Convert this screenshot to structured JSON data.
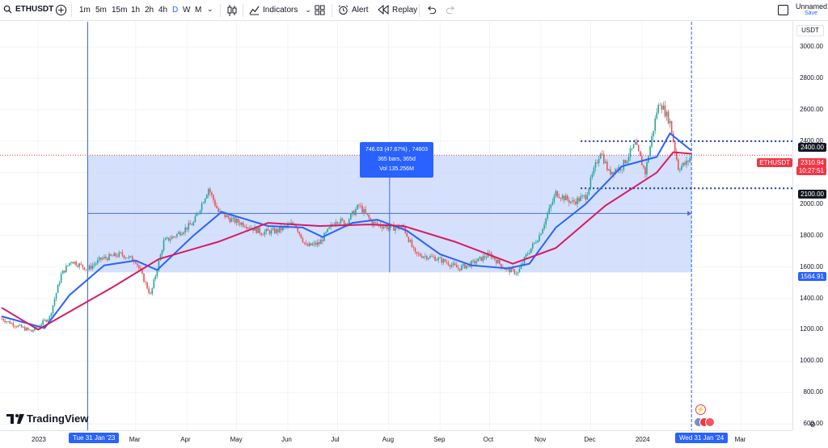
{
  "toolbar": {
    "symbol": "ETHUSDT",
    "timeframes": [
      "1m",
      "5m",
      "15m",
      "1h",
      "2h",
      "4h",
      "D",
      "W",
      "M"
    ],
    "active_timeframe": "D",
    "indicators_label": "Indicators",
    "alert_label": "Alert",
    "replay_label": "Replay",
    "layout_name": "Unnamed",
    "save_label": "Save"
  },
  "price_axis": {
    "currency": "USDT",
    "ticks": [
      "3000.00",
      "2800.00",
      "2600.00",
      "2400.00",
      "2200.00",
      "2000.00",
      "1800.00",
      "1600.00",
      "1400.00",
      "1200.00",
      "1000.00",
      "800.00",
      "600.00"
    ],
    "last_symbol": "ETHUSDT",
    "last_price": "2310.94",
    "countdown": "10:27:51",
    "level_upper": "2400.00",
    "level_lower": "2100.00",
    "range_low": "1564.91"
  },
  "time_axis": {
    "labels": [
      "2023",
      "Mar",
      "Apr",
      "May",
      "Jun",
      "Jul",
      "Aug",
      "Sep",
      "Oct",
      "Nov",
      "Dec",
      "2024",
      "Mar"
    ],
    "start_marker": "Tue 31 Jan '23",
    "end_marker": "Wed 31 Jan '24"
  },
  "measure": {
    "line1": "746.03 (47.67%) , 74603",
    "line2": "365 bars, 365d",
    "line3": "Vol 135.256M"
  },
  "watermark": "TradingView",
  "colors": {
    "accent": "#2962ff",
    "fast_ma": "#2962ff",
    "slow_ma": "#d81b60",
    "up_candle": "#26a69a",
    "down_candle": "#ef5350",
    "range_fill": "#c5d6fb",
    "last_price_tag": "#f23645"
  },
  "chart_data": {
    "type": "candlestick",
    "symbol": "ETHUSDT",
    "interval": "D",
    "y_range": [
      560,
      3160
    ],
    "x_range": [
      "2022-12-09",
      "2024-04-01"
    ],
    "measured_range": {
      "from": "2023-01-31",
      "to": "2024-01-31",
      "low": 1564.91,
      "high": 2310.94,
      "change": 746.03,
      "change_pct": 47.67,
      "bars": 365,
      "volume": "135.256M"
    },
    "price_path": [
      {
        "date": "2022-12-10",
        "close": 1270
      },
      {
        "date": "2022-12-18",
        "close": 1230
      },
      {
        "date": "2022-12-28",
        "close": 1190
      },
      {
        "date": "2023-01-08",
        "close": 1280
      },
      {
        "date": "2023-01-15",
        "close": 1550
      },
      {
        "date": "2023-01-21",
        "close": 1640
      },
      {
        "date": "2023-01-31",
        "close": 1585
      },
      {
        "date": "2023-02-08",
        "close": 1650
      },
      {
        "date": "2023-02-20",
        "close": 1680
      },
      {
        "date": "2023-03-01",
        "close": 1640
      },
      {
        "date": "2023-03-10",
        "close": 1420
      },
      {
        "date": "2023-03-18",
        "close": 1760
      },
      {
        "date": "2023-03-25",
        "close": 1800
      },
      {
        "date": "2023-04-05",
        "close": 1880
      },
      {
        "date": "2023-04-14",
        "close": 2100
      },
      {
        "date": "2023-04-20",
        "close": 1950
      },
      {
        "date": "2023-04-28",
        "close": 1900
      },
      {
        "date": "2023-05-06",
        "close": 1870
      },
      {
        "date": "2023-05-16",
        "close": 1820
      },
      {
        "date": "2023-05-26",
        "close": 1830
      },
      {
        "date": "2023-06-05",
        "close": 1880
      },
      {
        "date": "2023-06-12",
        "close": 1730
      },
      {
        "date": "2023-06-20",
        "close": 1750
      },
      {
        "date": "2023-06-30",
        "close": 1900
      },
      {
        "date": "2023-07-06",
        "close": 1880
      },
      {
        "date": "2023-07-14",
        "close": 1990
      },
      {
        "date": "2023-07-22",
        "close": 1880
      },
      {
        "date": "2023-08-01",
        "close": 1850
      },
      {
        "date": "2023-08-10",
        "close": 1850
      },
      {
        "date": "2023-08-17",
        "close": 1680
      },
      {
        "date": "2023-08-28",
        "close": 1660
      },
      {
        "date": "2023-09-05",
        "close": 1630
      },
      {
        "date": "2023-09-12",
        "close": 1590
      },
      {
        "date": "2023-09-20",
        "close": 1620
      },
      {
        "date": "2023-10-01",
        "close": 1680
      },
      {
        "date": "2023-10-10",
        "close": 1590
      },
      {
        "date": "2023-10-18",
        "close": 1560
      },
      {
        "date": "2023-10-23",
        "close": 1670
      },
      {
        "date": "2023-10-31",
        "close": 1800
      },
      {
        "date": "2023-11-10",
        "close": 2070
      },
      {
        "date": "2023-11-20",
        "close": 2010
      },
      {
        "date": "2023-11-28",
        "close": 2050
      },
      {
        "date": "2023-12-07",
        "close": 2340
      },
      {
        "date": "2023-12-12",
        "close": 2200
      },
      {
        "date": "2023-12-20",
        "close": 2240
      },
      {
        "date": "2023-12-28",
        "close": 2380
      },
      {
        "date": "2024-01-03",
        "close": 2200
      },
      {
        "date": "2024-01-10",
        "close": 2590
      },
      {
        "date": "2024-01-12",
        "close": 2650
      },
      {
        "date": "2024-01-18",
        "close": 2520
      },
      {
        "date": "2024-01-23",
        "close": 2230
      },
      {
        "date": "2024-01-28",
        "close": 2260
      },
      {
        "date": "2024-01-31",
        "close": 2310
      }
    ],
    "series": [
      {
        "key": "fast_ma",
        "values": [
          {
            "date": "2022-12-10",
            "v": 1285
          },
          {
            "date": "2023-01-05",
            "v": 1210
          },
          {
            "date": "2023-01-20",
            "v": 1420
          },
          {
            "date": "2023-02-10",
            "v": 1610
          },
          {
            "date": "2023-03-01",
            "v": 1640
          },
          {
            "date": "2023-03-14",
            "v": 1580
          },
          {
            "date": "2023-04-05",
            "v": 1800
          },
          {
            "date": "2023-04-22",
            "v": 1950
          },
          {
            "date": "2023-05-20",
            "v": 1860
          },
          {
            "date": "2023-06-10",
            "v": 1850
          },
          {
            "date": "2023-06-22",
            "v": 1790
          },
          {
            "date": "2023-07-10",
            "v": 1880
          },
          {
            "date": "2023-07-25",
            "v": 1900
          },
          {
            "date": "2023-08-12",
            "v": 1830
          },
          {
            "date": "2023-09-01",
            "v": 1680
          },
          {
            "date": "2023-09-20",
            "v": 1610
          },
          {
            "date": "2023-10-12",
            "v": 1590
          },
          {
            "date": "2023-10-25",
            "v": 1620
          },
          {
            "date": "2023-11-10",
            "v": 1850
          },
          {
            "date": "2023-11-28",
            "v": 2000
          },
          {
            "date": "2023-12-20",
            "v": 2240
          },
          {
            "date": "2024-01-10",
            "v": 2300
          },
          {
            "date": "2024-01-18",
            "v": 2450
          },
          {
            "date": "2024-01-31",
            "v": 2340
          }
        ]
      },
      {
        "key": "slow_ma",
        "values": [
          {
            "date": "2022-12-10",
            "v": 1340
          },
          {
            "date": "2023-01-01",
            "v": 1200
          },
          {
            "date": "2023-02-15",
            "v": 1470
          },
          {
            "date": "2023-03-15",
            "v": 1650
          },
          {
            "date": "2023-04-20",
            "v": 1760
          },
          {
            "date": "2023-05-20",
            "v": 1880
          },
          {
            "date": "2023-06-20",
            "v": 1860
          },
          {
            "date": "2023-07-20",
            "v": 1870
          },
          {
            "date": "2023-08-10",
            "v": 1860
          },
          {
            "date": "2023-09-10",
            "v": 1760
          },
          {
            "date": "2023-10-15",
            "v": 1620
          },
          {
            "date": "2023-11-10",
            "v": 1720
          },
          {
            "date": "2023-12-10",
            "v": 1990
          },
          {
            "date": "2024-01-10",
            "v": 2200
          },
          {
            "date": "2024-01-20",
            "v": 2330
          },
          {
            "date": "2024-01-31",
            "v": 2320
          }
        ]
      }
    ]
  }
}
